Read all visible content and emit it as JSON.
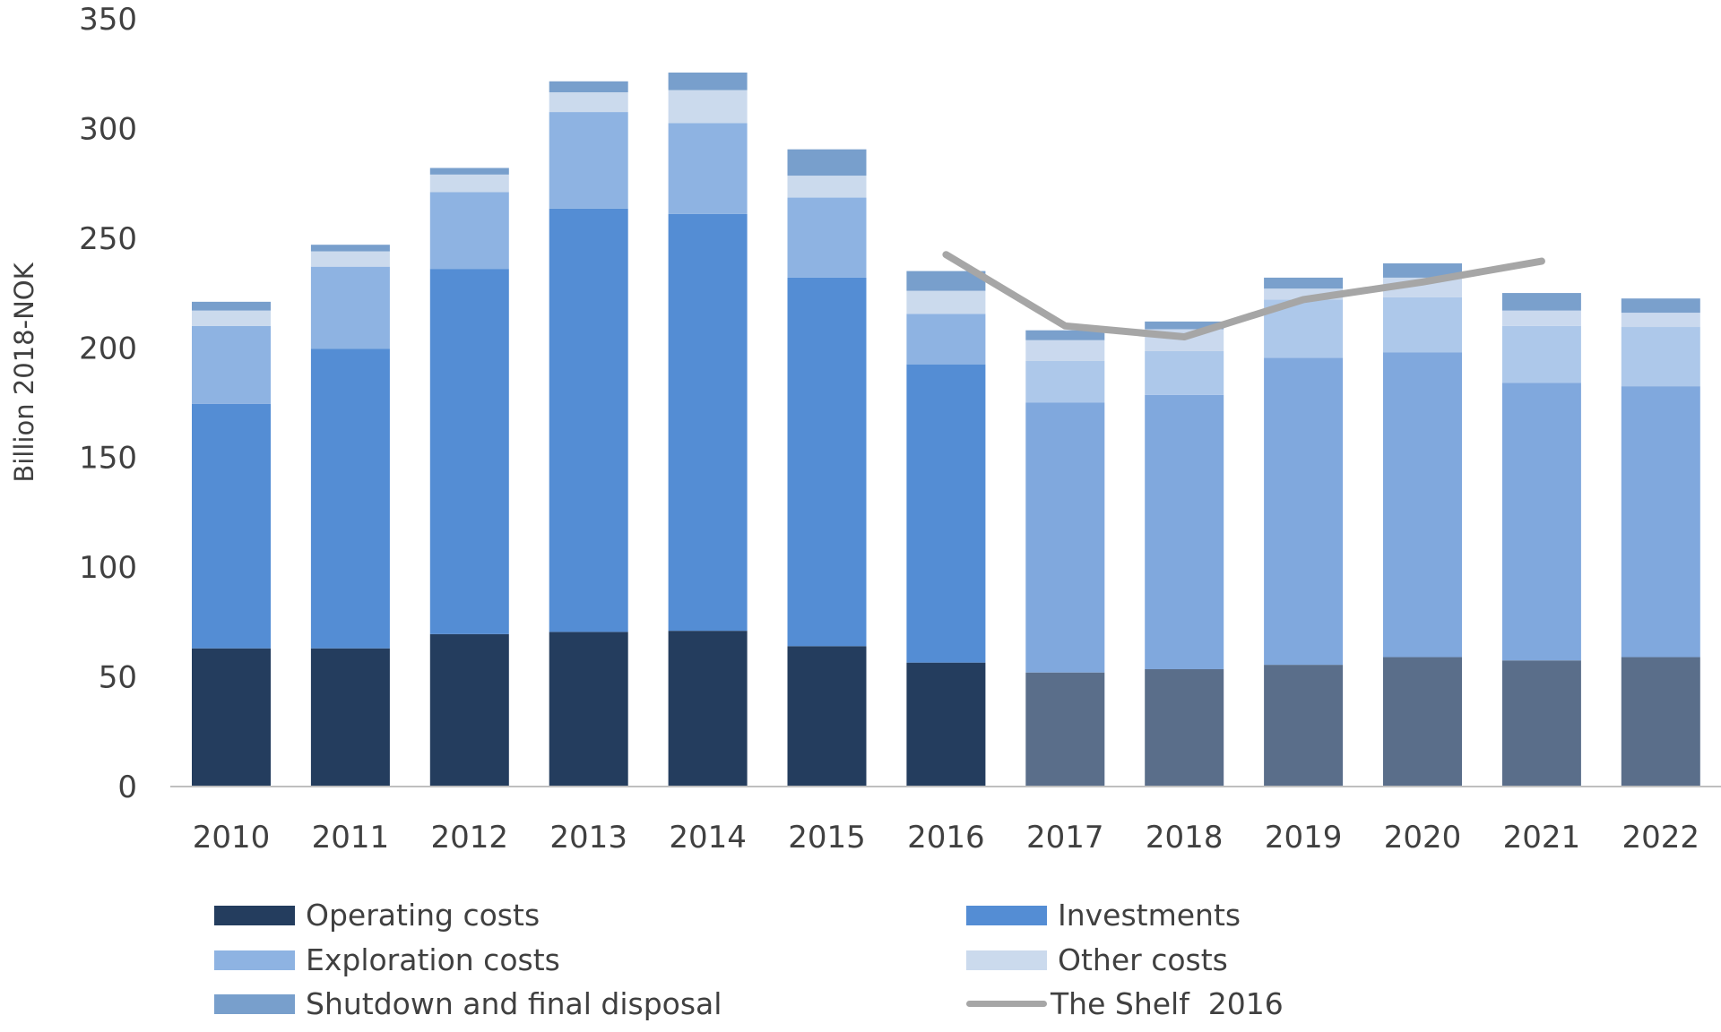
{
  "chart_data": {
    "type": "bar",
    "stacked": true,
    "title": "",
    "xlabel": "",
    "ylabel": "Billion 2018-NOK",
    "ylim": [
      0,
      350
    ],
    "yticks": [
      0,
      50,
      100,
      150,
      200,
      250,
      300,
      350
    ],
    "grid": false,
    "legend_position": "bottom",
    "categories": [
      "2010",
      "2011",
      "2012",
      "2013",
      "2014",
      "2015",
      "2016",
      "2017",
      "2018",
      "2019",
      "2020",
      "2021",
      "2022"
    ],
    "series": [
      {
        "name": "Operating costs",
        "color": "#243d5e",
        "forecast_color": "#5a6e8a",
        "values": [
          63,
          63,
          69.5,
          70.5,
          71,
          64,
          56.5,
          52,
          53.5,
          55.5,
          59,
          57.5,
          59
        ]
      },
      {
        "name": "Investments",
        "color": "#548dd4",
        "forecast_color": "#80a8dd",
        "values": [
          111.5,
          136.5,
          166.5,
          193,
          190,
          168,
          136,
          123,
          125,
          140,
          139,
          126.5,
          123.5
        ]
      },
      {
        "name": "Exploration costs",
        "color": "#8eb3e2",
        "forecast_color": "#adc8ea",
        "values": [
          35.5,
          37.5,
          35,
          44,
          41.5,
          36.5,
          23,
          19,
          20,
          26.5,
          25,
          26,
          27
        ]
      },
      {
        "name": "Other costs",
        "color": "#cbdaed",
        "forecast_color": "#cad9ee",
        "values": [
          7,
          7,
          8,
          9,
          15,
          10,
          10.5,
          9.5,
          10,
          5,
          9,
          7,
          6.5
        ]
      },
      {
        "name": "Shutdown and final disposal",
        "color": "#789fcc",
        "forecast_color": "#7aa0cc",
        "values": [
          4,
          3,
          3,
          5,
          8,
          12,
          9,
          4.5,
          3.5,
          5,
          6.5,
          8,
          6.5
        ]
      }
    ],
    "forecast_from": "2017",
    "line_series": {
      "name": "The Shelf  2016",
      "color": "#a6a6a6",
      "x": [
        "2016",
        "2017",
        "2018",
        "2019",
        "2020",
        "2021"
      ],
      "values": [
        242.5,
        210,
        205,
        222,
        230,
        239.5
      ]
    }
  }
}
